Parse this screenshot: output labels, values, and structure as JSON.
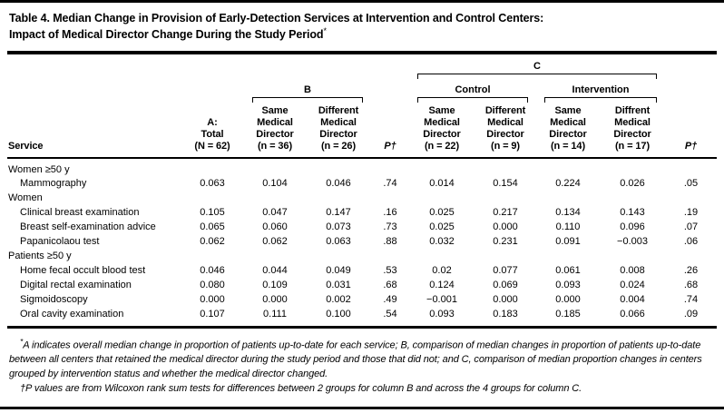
{
  "page": {
    "title_line1": "Table 4. Median Change in Provision of Early-Detection Services at Intervention and Control Centers:",
    "title_line2": "Impact of Medical Director Change During the Study Period",
    "title_marker": "*"
  },
  "table": {
    "group_labels": {
      "b": "B",
      "c": "C",
      "control": "Control",
      "intervention": "Intervention"
    },
    "columns": {
      "service": "Service",
      "a_total": "A:\nTotal\n(N = 62)",
      "b_same": "Same\nMedical\nDirector\n(n = 36)",
      "b_different": "Different\nMedical\nDirector\n(n = 26)",
      "p1": "P†",
      "c_control_same": "Same\nMedical\nDirector\n(n = 22)",
      "c_control_different": "Different\nMedical\nDirector\n(n = 9)",
      "c_intervention_same": "Same\nMedical\nDirector\n(n = 14)",
      "c_intervention_different": "Diffrent\nMedical\nDirector\n(n = 17)",
      "p2": "P†"
    },
    "rows": [
      {
        "type": "section",
        "label": "Women ≥50 y"
      },
      {
        "type": "data",
        "label": "Mammography",
        "values": [
          "0.063",
          "0.104",
          "0.046",
          ".74",
          "0.014",
          "0.154",
          "0.224",
          "0.026",
          ".05"
        ]
      },
      {
        "type": "section",
        "label": "Women"
      },
      {
        "type": "data",
        "label": "Clinical breast examination",
        "values": [
          "0.105",
          "0.047",
          "0.147",
          ".16",
          "0.025",
          "0.217",
          "0.134",
          "0.143",
          ".19"
        ]
      },
      {
        "type": "data",
        "label": "Breast self-examination advice",
        "values": [
          "0.065",
          "0.060",
          "0.073",
          ".73",
          "0.025",
          "0.000",
          "0.110",
          "0.096",
          ".07"
        ]
      },
      {
        "type": "data",
        "label": "Papanicolaou test",
        "values": [
          "0.062",
          "0.062",
          "0.063",
          ".88",
          "0.032",
          "0.231",
          "0.091",
          "−0.003",
          ".06"
        ]
      },
      {
        "type": "section",
        "label": "Patients ≥50 y"
      },
      {
        "type": "data",
        "label": "Home fecal occult blood test",
        "values": [
          "0.046",
          "0.044",
          "0.049",
          ".53",
          "0.02",
          "0.077",
          "0.061",
          "0.008",
          ".26"
        ]
      },
      {
        "type": "data",
        "label": "Digital rectal examination",
        "values": [
          "0.080",
          "0.109",
          "0.031",
          ".68",
          "0.124",
          "0.069",
          "0.093",
          "0.024",
          ".68"
        ]
      },
      {
        "type": "data",
        "label": "Sigmoidoscopy",
        "values": [
          "0.000",
          "0.000",
          "0.002",
          ".49",
          "−0.001",
          "0.000",
          "0.000",
          "0.004",
          ".74"
        ]
      },
      {
        "type": "data",
        "label": "Oral cavity examination",
        "values": [
          "0.107",
          "0.111",
          "0.100",
          ".54",
          "0.093",
          "0.183",
          "0.185",
          "0.066",
          ".09"
        ]
      }
    ]
  },
  "footnotes": [
    {
      "marker": "*",
      "text": "A indicates overall median change in proportion of patients up-to-date for each service; B, comparison of median changes in proportion of patients up-to-date between all centers that retained the medical director during the study period and those that did not; and C, comparison of median proportion changes in centers grouped by intervention status and whether the medical director changed."
    },
    {
      "marker": "†",
      "text": "P values are from Wilcoxon rank sum tests for differences between 2 groups for column B and across the 4 groups for column C."
    }
  ]
}
